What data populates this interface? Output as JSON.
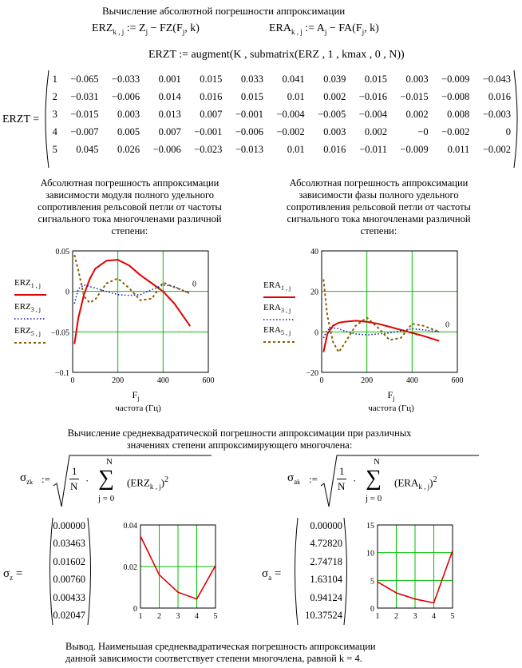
{
  "heading": "Вычисление абсолютной погрешности аппроксимации",
  "formulas": {
    "erz": "ERZ",
    "erz_idx": "k , j",
    "erz_rhs": ":= Z",
    "erz_rhs2": "j",
    "erz_rhs3": "− FZ(F",
    "erz_rhs4": "j",
    "erz_rhs5": ", k)",
    "era": "ERA",
    "era_idx": "k , j",
    "era_rhs": ":= A",
    "era_rhs2": "j",
    "era_rhs3": "− FA(F",
    "era_rhs4": "j",
    "era_rhs5": ", k)",
    "erzt": "ERZT  :=  augment(K , submatrix(ERZ , 1 , kmax , 0 , N))"
  },
  "matrix": {
    "label": "ERZT  =",
    "rows": [
      [
        "1",
        "−0.065",
        "−0.033",
        "0.001",
        "0.015",
        "0.033",
        "0.041",
        "0.039",
        "0.015",
        "0.003",
        "−0.009",
        "−0.043"
      ],
      [
        "2",
        "−0.031",
        "−0.006",
        "0.014",
        "0.016",
        "0.015",
        "0.01",
        "0.002",
        "−0.016",
        "−0.015",
        "−0.008",
        "0.016"
      ],
      [
        "3",
        "−0.015",
        "0.003",
        "0.013",
        "0.007",
        "−0.001",
        "−0.004",
        "−0.005",
        "−0.004",
        "0.002",
        "0.008",
        "−0.003"
      ],
      [
        "4",
        "−0.007",
        "0.005",
        "0.007",
        "−0.001",
        "−0.006",
        "−0.002",
        "0.003",
        "0.002",
        "−0",
        "−0.002",
        "0"
      ],
      [
        "5",
        "0.045",
        "0.026",
        "−0.006",
        "−0.023",
        "−0.013",
        "0.01",
        "0.016",
        "−0.011",
        "−0.009",
        "0.011",
        "−0.002"
      ]
    ]
  },
  "caption_z": [
    "Абсолютная погрешность аппроксимации",
    "зависимости модуля полного удельного",
    "сопротивления рельсовой петли от частоты",
    "сигнального тока многочленами различной",
    "степени:"
  ],
  "caption_a": [
    "Абсолютная погрешность аппроксимации",
    "зависимости фазы полного удельного",
    "сопротивления рельсовой петли от частоты",
    "сигнального тока многочленами различной",
    "степени:"
  ],
  "plot_z": {
    "yticks": [
      "0.05",
      "0",
      "−0.05",
      "−0.1"
    ],
    "xticks": [
      "0",
      "200",
      "400",
      "600"
    ],
    "legend": [
      {
        "name": "ERZ",
        "sub": "1 , j"
      },
      {
        "name": "ERZ",
        "sub": "3 , j"
      },
      {
        "name": "ERZ",
        "sub": "5 , j"
      }
    ],
    "zero_marker": "0",
    "xlabel": "F",
    "xlabel_sub": "j",
    "xunits": "частота (Гц)"
  },
  "plot_a": {
    "yticks": [
      "40",
      "20",
      "0",
      "−20"
    ],
    "xticks": [
      "0",
      "200",
      "400",
      "600"
    ],
    "legend": [
      {
        "name": "ERA",
        "sub": "1 , j"
      },
      {
        "name": "ERA",
        "sub": "3 , j"
      },
      {
        "name": "ERA",
        "sub": "5 , j"
      }
    ],
    "zero_marker": "0",
    "xlabel": "F",
    "xlabel_sub": "j",
    "xunits": "частота (Гц)"
  },
  "rms_heading": [
    "Вычисление среднеквадратической погрешности аппроксимации при различных",
    "значениях степени аппроксимирующего многочлена:"
  ],
  "rms_formula": {
    "sigma": "σ",
    "sub_z": "z",
    "sub_a": "a",
    "k": "k",
    "assign": ":=",
    "one": "1",
    "N": "N",
    "N_top": "N",
    "sum": "∑",
    "j0": "j = 0",
    "erz_term": "ERZ",
    "era_term": "ERA",
    "idx": "k , j",
    "sq": "2"
  },
  "sigma_z": {
    "label_main": "σ",
    "label_sub": "z",
    "label_eq": "=",
    "values": [
      "0.00000",
      "0.03463",
      "0.01602",
      "0.00760",
      "0.00433",
      "0.02047"
    ],
    "yticks": [
      "0.04",
      "0.02",
      "0"
    ],
    "xticks": [
      "1",
      "2",
      "3",
      "4",
      "5"
    ]
  },
  "sigma_a": {
    "label_main": "σ",
    "label_sub": "a",
    "label_eq": "=",
    "values": [
      "0.00000",
      "4.72820",
      "2.74718",
      "1.63104",
      "0.94124",
      "10.37524"
    ],
    "yticks": [
      "15",
      "10",
      "5",
      "0"
    ],
    "xticks": [
      "1",
      "2",
      "3",
      "4",
      "5"
    ]
  },
  "conclusion": [
    "Вывод.    Наименьшая среднеквадратическая погрешность аппроксимации",
    "данной зависимости соответствует степени многочлена, равной  k = 4."
  ],
  "colors": {
    "grid": "#00c000",
    "line": "#e00000",
    "dot3": "#1010c0",
    "dash5": "#8b5a00"
  },
  "chart_data": [
    {
      "type": "line",
      "xlim": [
        0,
        600
      ],
      "ylim": [
        -0.1,
        0.05
      ],
      "series": [
        {
          "name": "ERZ1,j",
          "x": [
            8,
            25,
            50,
            75,
            100,
            150,
            200,
            250,
            300,
            350,
            400,
            450,
            520
          ],
          "y": [
            -0.065,
            -0.033,
            -0.004,
            0.015,
            0.028,
            0.038,
            0.039,
            0.032,
            0.02,
            0.01,
            0.0,
            -0.015,
            -0.043
          ]
        },
        {
          "name": "ERZ3,j",
          "x": [
            8,
            25,
            50,
            75,
            100,
            150,
            200,
            250,
            300,
            350,
            400,
            450,
            520
          ],
          "y": [
            -0.015,
            0.003,
            0.008,
            0.006,
            0.004,
            0.0,
            -0.004,
            -0.005,
            -0.004,
            0.002,
            0.008,
            0.006,
            -0.003
          ]
        },
        {
          "name": "ERZ5,j",
          "x": [
            8,
            25,
            50,
            75,
            100,
            150,
            200,
            250,
            300,
            350,
            400,
            450,
            520
          ],
          "y": [
            0.045,
            0.026,
            -0.006,
            -0.014,
            -0.01,
            0.01,
            0.016,
            0.004,
            -0.011,
            -0.009,
            0.011,
            0.005,
            -0.002
          ]
        }
      ]
    },
    {
      "type": "line",
      "xlim": [
        0,
        600
      ],
      "ylim": [
        -20,
        40
      ],
      "series": [
        {
          "name": "ERA1,j",
          "x": [
            8,
            25,
            50,
            75,
            100,
            150,
            200,
            250,
            300,
            350,
            400,
            450,
            520
          ],
          "y": [
            -10,
            -1,
            3,
            4.5,
            5,
            5.5,
            5,
            4,
            2.5,
            1,
            -0.5,
            -2,
            -4.5
          ]
        },
        {
          "name": "ERA3,j",
          "x": [
            8,
            25,
            50,
            75,
            100,
            150,
            200,
            250,
            300,
            350,
            400,
            450,
            520
          ],
          "y": [
            -3,
            1,
            2,
            1.5,
            0.5,
            -1,
            -1.5,
            -1,
            -0.5,
            0.5,
            1.5,
            1,
            0
          ]
        },
        {
          "name": "ERA5,j",
          "x": [
            8,
            25,
            50,
            75,
            100,
            150,
            200,
            250,
            300,
            350,
            400,
            450,
            520
          ],
          "y": [
            26,
            8,
            -5,
            -10,
            -6,
            3,
            7,
            2,
            -4,
            -3,
            4,
            3,
            0
          ]
        }
      ]
    },
    {
      "type": "line",
      "xlim": [
        1,
        5
      ],
      "ylim": [
        0,
        0.04
      ],
      "series": [
        {
          "name": "σz",
          "x": [
            1,
            2,
            3,
            4,
            5
          ],
          "y": [
            0.03463,
            0.01602,
            0.0076,
            0.00433,
            0.02047
          ]
        }
      ]
    },
    {
      "type": "line",
      "xlim": [
        1,
        5
      ],
      "ylim": [
        0,
        15
      ],
      "series": [
        {
          "name": "σa",
          "x": [
            1,
            2,
            3,
            4,
            5
          ],
          "y": [
            4.7282,
            2.74718,
            1.63104,
            0.94124,
            10.37524
          ]
        }
      ]
    }
  ]
}
